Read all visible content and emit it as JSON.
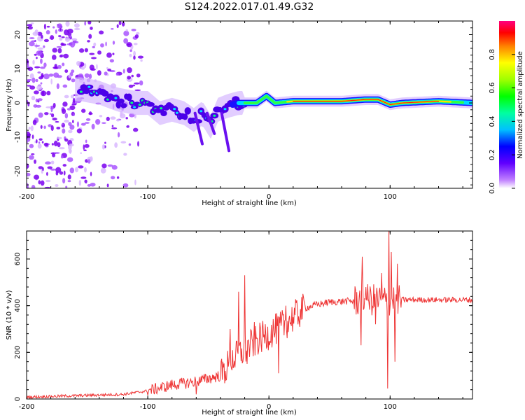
{
  "title": "S124.2022.017.01.49.G32",
  "chart_data": [
    {
      "type": "heatmap",
      "xlabel": "Height of straight line (km)",
      "ylabel": "Frequency (Hz)",
      "xlim": [
        -200,
        168
      ],
      "ylim": [
        -25,
        24
      ],
      "x_ticks": [
        "-200",
        "-100",
        "0",
        "100"
      ],
      "y_ticks": [
        "-20",
        "-10",
        "0",
        "10",
        "20"
      ],
      "colorbar": {
        "label": "Normalized spectral amplitude",
        "range": [
          0,
          1
        ],
        "ticks": [
          "0.0",
          "0.2",
          "0.4",
          "0.6",
          "0.8"
        ]
      },
      "ridge": [
        {
          "x": -155,
          "f": 4
        },
        {
          "x": -140,
          "f": 3
        },
        {
          "x": -125,
          "f": 1
        },
        {
          "x": -110,
          "f": 0
        },
        {
          "x": -100,
          "f": 0
        },
        {
          "x": -90,
          "f": -3
        },
        {
          "x": -80,
          "f": -2
        },
        {
          "x": -70,
          "f": -3
        },
        {
          "x": -62,
          "f": -5
        },
        {
          "x": -55,
          "f": -3
        },
        {
          "x": -48,
          "f": -7
        },
        {
          "x": -42,
          "f": -2
        },
        {
          "x": -35,
          "f": -1
        },
        {
          "x": -25,
          "f": 0
        },
        {
          "x": -10,
          "f": 0
        },
        {
          "x": -2,
          "f": 2
        },
        {
          "x": 5,
          "f": 0
        },
        {
          "x": 20,
          "f": 0.5
        },
        {
          "x": 60,
          "f": 0.5
        },
        {
          "x": 80,
          "f": 1
        },
        {
          "x": 90,
          "f": 1
        },
        {
          "x": 100,
          "f": -0.5
        },
        {
          "x": 110,
          "f": 0
        },
        {
          "x": 140,
          "f": 0.5
        },
        {
          "x": 168,
          "f": 0
        }
      ]
    },
    {
      "type": "line",
      "xlabel": "Height of straight line (km)",
      "ylabel": "SNR (10 * v/v)",
      "xlim": [
        -200,
        168
      ],
      "ylim": [
        0,
        720
      ],
      "x_ticks": [
        "-200",
        "-100",
        "0",
        "100"
      ],
      "y_ticks": [
        "0",
        "200",
        "400",
        "600"
      ],
      "series_color": "#ee3333",
      "baseline": {
        "x": [
          -200,
          -120,
          -100,
          -80,
          -60,
          -40,
          -30,
          -20,
          -10,
          0,
          10,
          20,
          30,
          40,
          50,
          60,
          70,
          80,
          90,
          95,
          100,
          105,
          110,
          130,
          150,
          168
        ],
        "y": [
          8,
          20,
          35,
          60,
          75,
          100,
          170,
          210,
          250,
          280,
          310,
          350,
          390,
          405,
          415,
          418,
          420,
          425,
          425,
          420,
          425,
          430,
          425,
          425,
          425,
          425
        ]
      },
      "spikes": [
        {
          "x": -60,
          "y": 20
        },
        {
          "x": -36,
          "y": 120
        },
        {
          "x": -32,
          "y": 300
        },
        {
          "x": -25,
          "y": 460
        },
        {
          "x": -20,
          "y": 530
        },
        {
          "x": -18,
          "y": 150
        },
        {
          "x": -12,
          "y": 330
        },
        {
          "x": 8,
          "y": 110
        },
        {
          "x": 14,
          "y": 400
        },
        {
          "x": 76,
          "y": 230
        },
        {
          "x": 77,
          "y": 610
        },
        {
          "x": 80,
          "y": 480
        },
        {
          "x": 88,
          "y": 320
        },
        {
          "x": 93,
          "y": 540
        },
        {
          "x": 98,
          "y": 45
        },
        {
          "x": 99,
          "y": 720
        },
        {
          "x": 101,
          "y": 630
        },
        {
          "x": 104,
          "y": 160
        },
        {
          "x": 106,
          "y": 580
        }
      ]
    }
  ]
}
